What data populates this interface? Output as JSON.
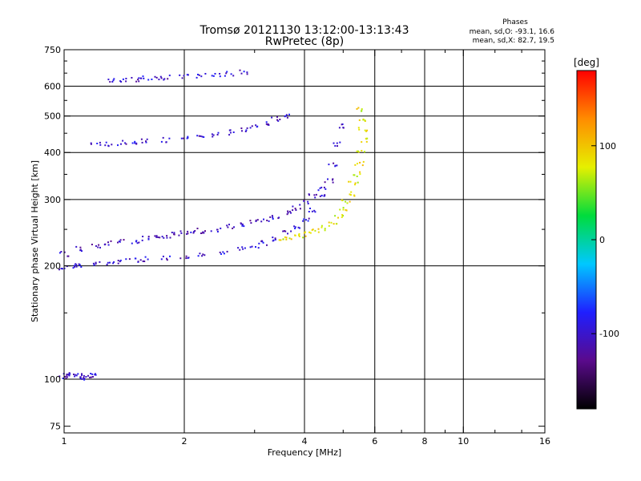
{
  "header": {
    "title_line1": "Tromsø 20121130 13:12:00-13:13:43",
    "title_line2": "RwPretec (8p)"
  },
  "stats": {
    "title": "Phases",
    "line_o": "mean, sd,O: -93.1, 16.6",
    "line_x": "mean, sd,X:  82.7, 19.5"
  },
  "chart_data": {
    "type": "scatter",
    "xlabel": "Frequency [MHz]",
    "ylabel": "Stationary phase Virtual Height [km]",
    "xscale": "log",
    "yscale": "log",
    "xlim": [
      1,
      16
    ],
    "ylim": [
      72,
      750
    ],
    "x_ticks": [
      1,
      2,
      4,
      6,
      8,
      10,
      16
    ],
    "x_minor_ticks": [
      3,
      5,
      7,
      9,
      12,
      14
    ],
    "y_ticks": [
      75,
      100,
      200,
      300,
      400,
      500,
      600,
      750
    ],
    "y_minor_ticks": [
      150,
      250,
      350,
      450,
      550,
      650,
      700
    ],
    "grid_x": [
      2,
      4,
      6,
      8,
      10
    ],
    "grid_y": [
      100,
      200,
      300,
      400,
      500,
      600
    ],
    "colorbar": {
      "label": "[deg]",
      "range": [
        -180,
        180
      ],
      "ticks": [
        100,
        0,
        -100
      ],
      "colors": [
        "#000000",
        "#5a0a8c",
        "#1f1fff",
        "#00c8ff",
        "#00dc3c",
        "#e6f000",
        "#ff8c00",
        "#ff0000"
      ]
    },
    "series": [
      {
        "color_role": "O-mode F low trace (blue)",
        "phase_deg": -100,
        "x": [
          1.0,
          1.05,
          1.1,
          1.2,
          1.3,
          1.4,
          1.5,
          1.6,
          1.8,
          2.0,
          2.2,
          2.5,
          2.8,
          3.0,
          3.2,
          3.4,
          3.6,
          3.8,
          4.0,
          4.2,
          4.4,
          4.6,
          4.7,
          4.8,
          4.9
        ],
        "y": [
          198,
          200,
          200,
          202,
          204,
          206,
          207,
          208,
          210,
          212,
          214,
          218,
          222,
          226,
          230,
          236,
          244,
          254,
          266,
          282,
          305,
          335,
          370,
          420,
          470
        ]
      },
      {
        "color_role": "O-mode F scatter band (blue/purple)",
        "phase_deg": -105,
        "x": [
          1.0,
          1.1,
          1.2,
          1.3,
          1.4,
          1.5,
          1.6,
          1.7,
          1.8,
          1.9,
          2.0,
          2.1,
          2.2,
          2.4,
          2.6,
          2.8,
          3.0,
          3.2,
          3.4,
          3.6,
          3.8,
          4.0,
          4.2,
          4.4
        ],
        "y": [
          215,
          222,
          225,
          230,
          234,
          232,
          236,
          240,
          238,
          242,
          245,
          248,
          246,
          250,
          254,
          258,
          262,
          266,
          270,
          276,
          284,
          294,
          306,
          322
        ]
      },
      {
        "color_role": "X-mode F trace (yellow/green)",
        "phase_deg": 85,
        "x": [
          3.5,
          3.7,
          3.9,
          4.1,
          4.3,
          4.5,
          4.7,
          4.9,
          5.0,
          5.1,
          5.2,
          5.3,
          5.4,
          5.5,
          5.55,
          5.6,
          5.6,
          5.55,
          5.5
        ],
        "y": [
          236,
          238,
          240,
          243,
          247,
          252,
          260,
          272,
          282,
          295,
          310,
          330,
          350,
          375,
          400,
          430,
          460,
          490,
          520
        ]
      },
      {
        "color_role": "Multi-hop F2 (blue)",
        "phase_deg": -100,
        "x": [
          1.2,
          1.3,
          1.4,
          1.5,
          1.6,
          1.8,
          2.0,
          2.2,
          2.4,
          2.6,
          2.8,
          3.0,
          3.2,
          3.4,
          3.6
        ],
        "y": [
          420,
          422,
          424,
          426,
          428,
          432,
          436,
          440,
          446,
          452,
          460,
          470,
          480,
          490,
          500
        ]
      },
      {
        "color_role": "Third-hop trace (blue)",
        "phase_deg": -100,
        "x": [
          1.3,
          1.4,
          1.5,
          1.6,
          1.7,
          1.8,
          2.0,
          2.2,
          2.4,
          2.6,
          2.8
        ],
        "y": [
          620,
          622,
          625,
          628,
          630,
          632,
          636,
          640,
          644,
          648,
          652
        ]
      },
      {
        "color_role": "Sporadic E (blue)",
        "phase_deg": -100,
        "x": [
          1.0,
          1.02,
          1.05,
          1.08,
          1.1,
          1.12,
          1.15,
          1.18
        ],
        "y": [
          101,
          102,
          103,
          102,
          101,
          102,
          101,
          102
        ]
      }
    ]
  }
}
